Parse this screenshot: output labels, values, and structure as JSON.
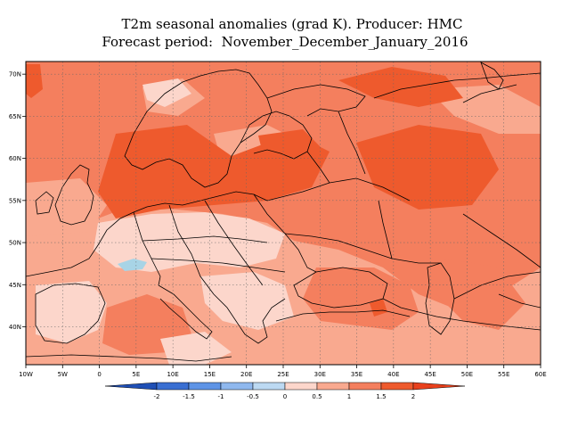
{
  "title": {
    "line1": "T2m seasonal anomalies (grad K). Producer: HMC",
    "line2": "Forecast period:  November_December_January_2016"
  },
  "map": {
    "lon_range": [
      -10,
      60
    ],
    "lat_range": [
      35.5,
      71.5
    ],
    "lon_ticks": [
      "10W",
      "5W",
      "0",
      "5E",
      "10E",
      "15E",
      "20E",
      "25E",
      "30E",
      "35E",
      "40E",
      "45E",
      "50E",
      "55E",
      "60E"
    ],
    "lat_ticks": [
      "70N",
      "65N",
      "60N",
      "55N",
      "50N",
      "45N",
      "40N"
    ],
    "lat_tick_values": [
      70,
      65,
      60,
      55,
      50,
      45,
      40
    ],
    "colors": {
      "light_blue": "#a8d4e6",
      "pale_pink": "#fcd6cb",
      "light_salmon": "#f9a98f",
      "salmon": "#f47f5e",
      "red_orange": "#ee5a2d",
      "deep_red": "#e8401c"
    }
  },
  "colorbar": {
    "labels": [
      "-2",
      "-1.5",
      "-1",
      "-0.5",
      "0",
      "0.5",
      "1",
      "1.5",
      "2"
    ],
    "colors": [
      "#1f4fb5",
      "#3a6fd2",
      "#5e94e6",
      "#8fb8ee",
      "#bcd9f2",
      "#fcd6cb",
      "#f9a98f",
      "#f47f5e",
      "#ee5a2d",
      "#e8401c"
    ]
  }
}
